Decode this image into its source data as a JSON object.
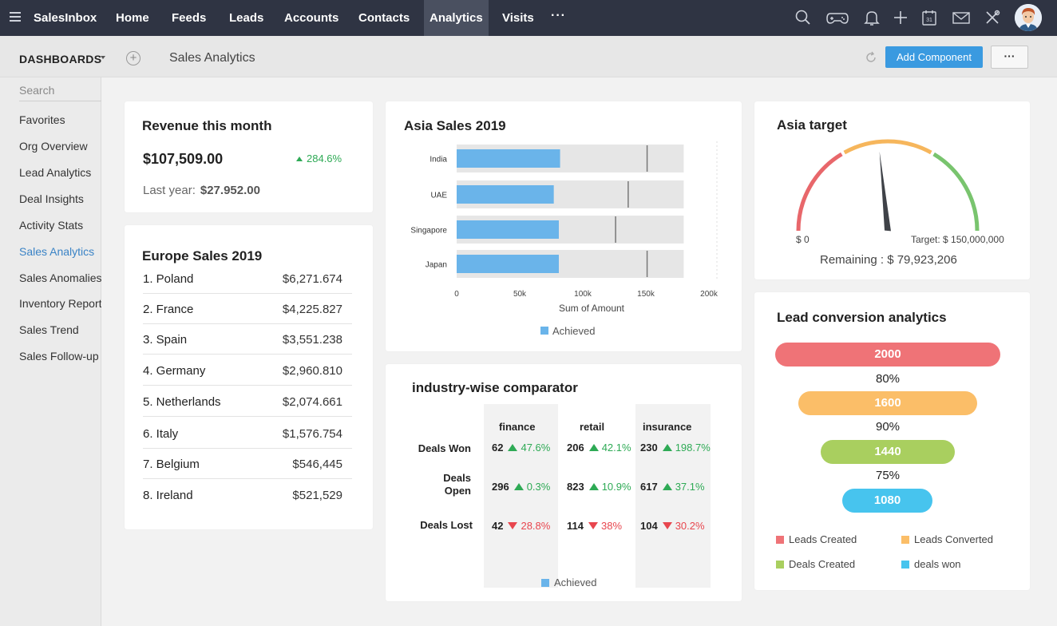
{
  "topnav": {
    "brand": "SalesInbox",
    "items": [
      {
        "label": "Home"
      },
      {
        "label": "Feeds"
      },
      {
        "label": "Leads"
      },
      {
        "label": "Accounts"
      },
      {
        "label": "Contacts"
      },
      {
        "label": "Analytics",
        "active": true
      },
      {
        "label": "Visits"
      }
    ],
    "more": "···",
    "icons": [
      "search-icon",
      "gamepad-icon",
      "bell-icon",
      "plus-icon",
      "calendar-icon",
      "mail-icon",
      "tools-icon"
    ],
    "calendar_day": "31"
  },
  "subheader": {
    "dashboards_label": "DASHBOARDS",
    "page_title": "Sales Analytics",
    "add_component": "Add Component",
    "more": "···"
  },
  "sidebar": {
    "search_placeholder": "Search",
    "items": [
      {
        "label": "Favorites"
      },
      {
        "label": "Org Overview"
      },
      {
        "label": "Lead Analytics"
      },
      {
        "label": "Deal Insights"
      },
      {
        "label": "Activity Stats"
      },
      {
        "label": "Sales Analytics",
        "active": true
      },
      {
        "label": "Sales Anomalies"
      },
      {
        "label": "Inventory Reports"
      },
      {
        "label": "Sales Trend"
      },
      {
        "label": "Sales Follow-up"
      }
    ]
  },
  "revenue": {
    "title": "Revenue this month",
    "amount": "$107,509.00",
    "change": "284.6%",
    "last_year_label": "Last year:",
    "last_year_value": "$27.952.00"
  },
  "europe": {
    "title": "Europe Sales 2019",
    "rows": [
      {
        "name": "1. Poland",
        "value": "$6,271.674"
      },
      {
        "name": "2. France",
        "value": "$4,225.827"
      },
      {
        "name": "3. Spain",
        "value": "$3,551.238"
      },
      {
        "name": "4. Germany",
        "value": "$2,960.810"
      },
      {
        "name": "5. Netherlands",
        "value": "$2,074.661"
      },
      {
        "name": "6. Italy",
        "value": "$1,576.754"
      },
      {
        "name": "7. Belgium",
        "value": "$546,445"
      },
      {
        "name": "8. Ireland",
        "value": "$521,529"
      }
    ]
  },
  "chart_data": {
    "type": "bar",
    "title": "Asia Sales 2019",
    "orientation": "horizontal",
    "categories": [
      "India",
      "UAE",
      "Singapore",
      "Japan"
    ],
    "series": [
      {
        "name": "Achieved",
        "values": [
          82000,
          77000,
          81000,
          81000
        ],
        "color": "#6ab4ea"
      }
    ],
    "targets": [
      151000,
      136000,
      126000,
      151000
    ],
    "max_values": [
      180000,
      180000,
      180000,
      180000
    ],
    "xlabel": "Sum of Amount",
    "ylabel": "",
    "xlim": [
      0,
      200000
    ],
    "x_ticks": [
      "0",
      "50k",
      "100k",
      "150k",
      "200k"
    ],
    "legend": "bottom",
    "grid": false
  },
  "asia_target": {
    "title": "Asia target",
    "min_label": "$ 0",
    "target_label": "Target: $ 150,000,000",
    "remaining": "Remaining : $ 79,923,206",
    "value_fraction": 0.467,
    "colors": {
      "low": "#e8676b",
      "mid": "#f6b65c",
      "high": "#79c46e",
      "needle": "#3f4248"
    }
  },
  "comparator": {
    "title": "industry-wise comparator",
    "columns": [
      "finance",
      "retail",
      "insurance"
    ],
    "rows": [
      {
        "label": "Deals Won",
        "cells": [
          {
            "value": "62",
            "change": "47.6%",
            "dir": "up"
          },
          {
            "value": "206",
            "change": "42.1%",
            "dir": "up"
          },
          {
            "value": "230",
            "change": "198.7%",
            "dir": "up"
          }
        ]
      },
      {
        "label": "Deals Open",
        "cells": [
          {
            "value": "296",
            "change": "0.3%",
            "dir": "up"
          },
          {
            "value": "823",
            "change": "10.9%",
            "dir": "up"
          },
          {
            "value": "617",
            "change": "37.1%",
            "dir": "up"
          }
        ]
      },
      {
        "label": "Deals Lost",
        "cells": [
          {
            "value": "42",
            "change": "28.8%",
            "dir": "down"
          },
          {
            "value": "114",
            "change": "38%",
            "dir": "down"
          },
          {
            "value": "104",
            "change": "30.2%",
            "dir": "down"
          }
        ]
      }
    ],
    "legend": "Achieved"
  },
  "lead_conversion": {
    "title": "Lead conversion analytics",
    "stages": [
      {
        "value": "2000",
        "color": "#ef7377"
      },
      {
        "value": "1600",
        "color": "#fbbe68"
      },
      {
        "value": "1440",
        "color": "#a9cf5f"
      },
      {
        "value": "1080",
        "color": "#47c4ee"
      }
    ],
    "rates": [
      "80%",
      "90%",
      "75%"
    ],
    "legend": [
      {
        "label": "Leads Created",
        "color": "#ef7377"
      },
      {
        "label": "Leads Converted",
        "color": "#fbbe68"
      },
      {
        "label": "Deals Created",
        "color": "#a9cf5f"
      },
      {
        "label": "deals won",
        "color": "#47c4ee"
      }
    ]
  }
}
